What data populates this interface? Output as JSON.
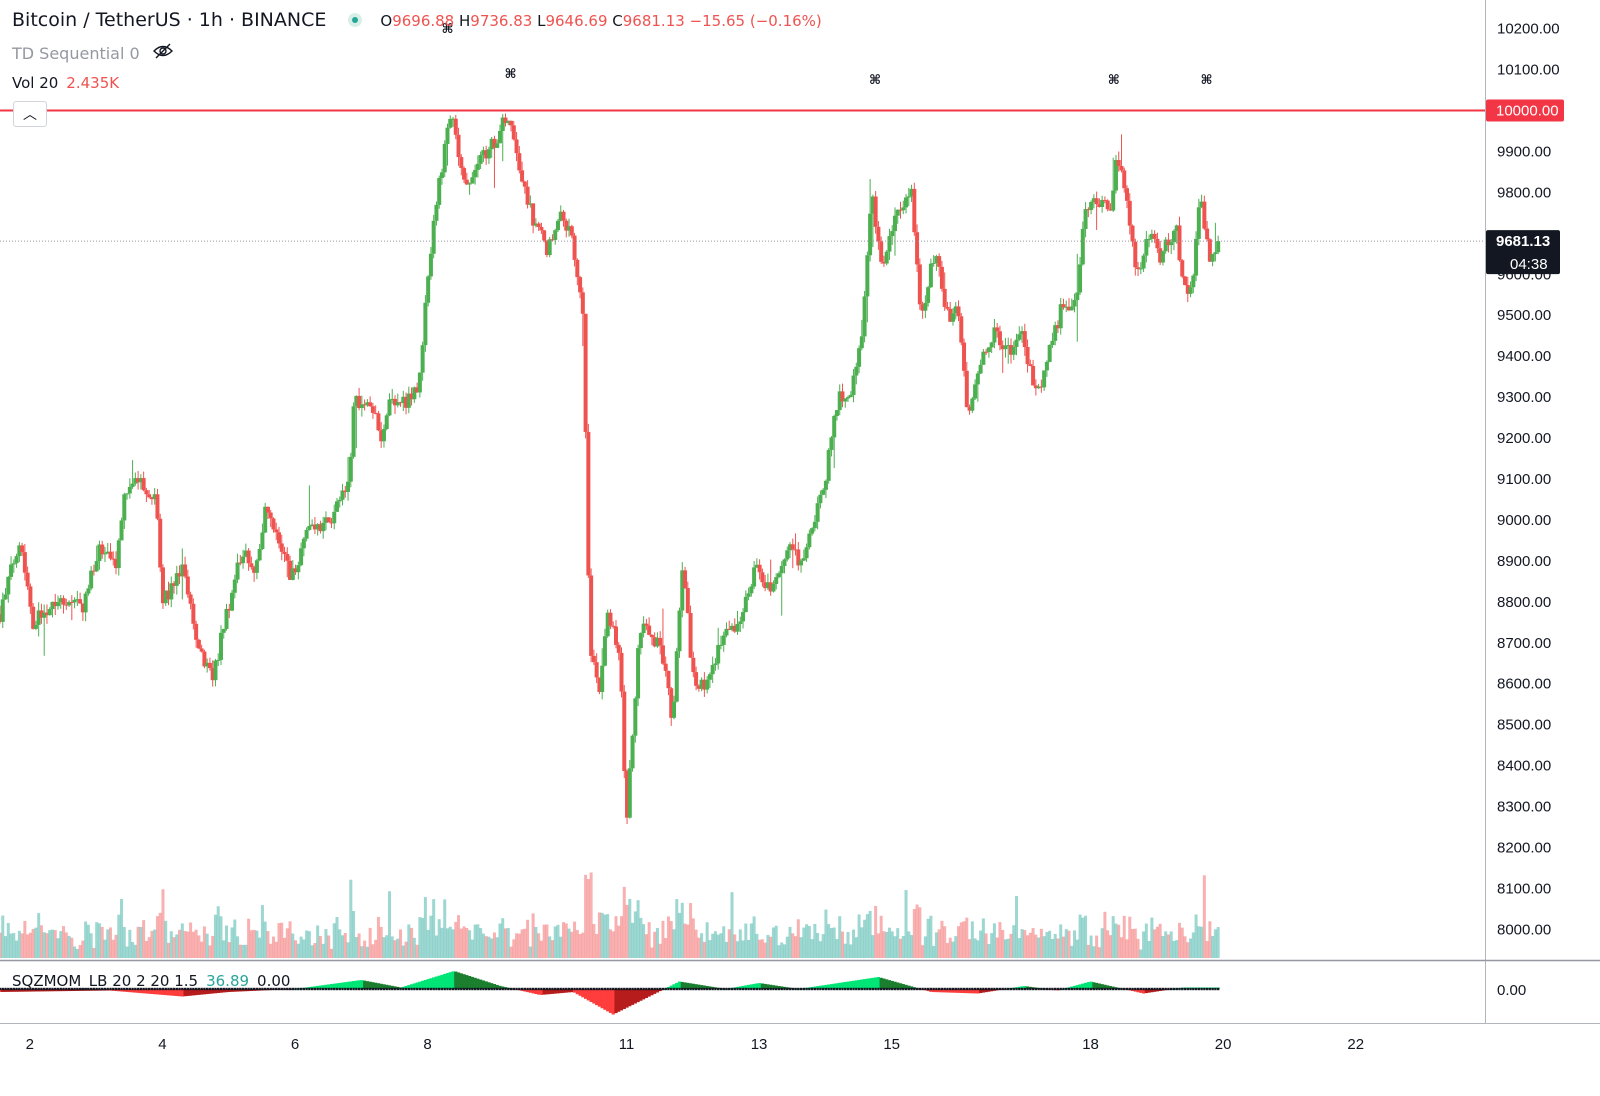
{
  "header": {
    "symbol": "Bitcoin / TetherUS · 1h · BINANCE",
    "open_label": "O",
    "open": "9696.88",
    "high_label": "H",
    "high": "9736.83",
    "low_label": "L",
    "low": "9646.69",
    "close_label": "C",
    "close": "9681.13",
    "change": "−15.65 (−0.16%)"
  },
  "indicators": {
    "td_label": "TD Sequential 0",
    "vol_label": "Vol 20",
    "vol_value": "2.435K",
    "mom_label": "SQZMOM_LB 20 2 20 1.5",
    "mom_value1": "36.89",
    "mom_value2": "0.00",
    "mom_axis_label": "0.00"
  },
  "icons": {
    "eye": "eye-crossed-icon",
    "collapse": "chevron-up-icon",
    "status_dot": "market-status-dot-icon"
  },
  "colors": {
    "up": "#26a69a",
    "up_candle": "#4caf50",
    "down": "#ef5350",
    "resistance": "#f23645",
    "price_tag": "#131722"
  },
  "chart_data": {
    "type": "candlestick",
    "timeframe": "1h",
    "y_axis_ticks": [
      "10200.00",
      "10100.00",
      "10000.00",
      "9900.00",
      "9800.00",
      "9600.00",
      "9500.00",
      "9400.00",
      "9300.00",
      "9200.00",
      "9100.00",
      "9000.00",
      "8900.00",
      "8800.00",
      "8700.00",
      "8600.00",
      "8500.00",
      "8400.00",
      "8300.00",
      "8200.00",
      "8100.00",
      "8000.00"
    ],
    "ylim": [
      7930,
      10270
    ],
    "x_axis_ticks": [
      "2",
      "4",
      "6",
      "8",
      "11",
      "13",
      "15",
      "18",
      "20",
      "22"
    ],
    "x_tick_day_positions": [
      2,
      4,
      6,
      8,
      11,
      13,
      15,
      18,
      20,
      22
    ],
    "xlim_days": [
      1.55,
      23.95
    ],
    "last_day": 19.95,
    "resistance_level": 10000,
    "resistance_label": "10000.00",
    "last_price": 9681.13,
    "last_price_label": "9681.13",
    "countdown": "04:38",
    "td_marker_glyph": "⌘",
    "td_markers": [
      {
        "day": 8.3,
        "price": 10190
      },
      {
        "day": 9.25,
        "price": 10080
      },
      {
        "day": 14.75,
        "price": 10065
      },
      {
        "day": 18.35,
        "price": 10065
      },
      {
        "day": 19.75,
        "price": 10065
      }
    ],
    "price_path": [
      {
        "day": 1.55,
        "close": 8770
      },
      {
        "day": 1.85,
        "close": 8960
      },
      {
        "day": 2.05,
        "close": 8750
      },
      {
        "day": 2.4,
        "close": 8810
      },
      {
        "day": 2.8,
        "close": 8790
      },
      {
        "day": 3.05,
        "close": 8930
      },
      {
        "day": 3.3,
        "close": 8880
      },
      {
        "day": 3.4,
        "close": 9040
      },
      {
        "day": 3.6,
        "close": 9100
      },
      {
        "day": 3.9,
        "close": 9060
      },
      {
        "day": 4.0,
        "close": 8800
      },
      {
        "day": 4.3,
        "close": 8880
      },
      {
        "day": 4.55,
        "close": 8690
      },
      {
        "day": 4.75,
        "close": 8610
      },
      {
        "day": 5.0,
        "close": 8790
      },
      {
        "day": 5.2,
        "close": 8930
      },
      {
        "day": 5.4,
        "close": 8860
      },
      {
        "day": 5.55,
        "close": 9020
      },
      {
        "day": 5.75,
        "close": 8950
      },
      {
        "day": 5.95,
        "close": 8860
      },
      {
        "day": 6.2,
        "close": 8980
      },
      {
        "day": 6.5,
        "close": 8990
      },
      {
        "day": 6.8,
        "close": 9080
      },
      {
        "day": 6.9,
        "close": 9300
      },
      {
        "day": 7.2,
        "close": 9260
      },
      {
        "day": 7.3,
        "close": 9180
      },
      {
        "day": 7.45,
        "close": 9300
      },
      {
        "day": 7.7,
        "close": 9290
      },
      {
        "day": 7.85,
        "close": 9320
      },
      {
        "day": 8.05,
        "close": 9650
      },
      {
        "day": 8.15,
        "close": 9800
      },
      {
        "day": 8.35,
        "close": 9990
      },
      {
        "day": 8.55,
        "close": 9820
      },
      {
        "day": 8.8,
        "close": 9880
      },
      {
        "day": 9.0,
        "close": 9920
      },
      {
        "day": 9.2,
        "close": 9990
      },
      {
        "day": 9.4,
        "close": 9850
      },
      {
        "day": 9.6,
        "close": 9730
      },
      {
        "day": 9.8,
        "close": 9660
      },
      {
        "day": 10.0,
        "close": 9760
      },
      {
        "day": 10.2,
        "close": 9670
      },
      {
        "day": 10.35,
        "close": 9500
      },
      {
        "day": 10.45,
        "close": 8670
      },
      {
        "day": 10.6,
        "close": 8580
      },
      {
        "day": 10.7,
        "close": 8770
      },
      {
        "day": 10.9,
        "close": 8680
      },
      {
        "day": 11.0,
        "close": 8260
      },
      {
        "day": 11.2,
        "close": 8740
      },
      {
        "day": 11.5,
        "close": 8700
      },
      {
        "day": 11.7,
        "close": 8510
      },
      {
        "day": 11.85,
        "close": 8900
      },
      {
        "day": 12.0,
        "close": 8620
      },
      {
        "day": 12.2,
        "close": 8590
      },
      {
        "day": 12.4,
        "close": 8700
      },
      {
        "day": 12.7,
        "close": 8750
      },
      {
        "day": 12.95,
        "close": 8880
      },
      {
        "day": 13.2,
        "close": 8820
      },
      {
        "day": 13.45,
        "close": 8930
      },
      {
        "day": 13.65,
        "close": 8890
      },
      {
        "day": 13.85,
        "close": 9000
      },
      {
        "day": 14.0,
        "close": 9100
      },
      {
        "day": 14.2,
        "close": 9310
      },
      {
        "day": 14.35,
        "close": 9290
      },
      {
        "day": 14.55,
        "close": 9450
      },
      {
        "day": 14.7,
        "close": 9790
      },
      {
        "day": 14.85,
        "close": 9620
      },
      {
        "day": 15.05,
        "close": 9730
      },
      {
        "day": 15.3,
        "close": 9790
      },
      {
        "day": 15.45,
        "close": 9490
      },
      {
        "day": 15.65,
        "close": 9660
      },
      {
        "day": 15.85,
        "close": 9490
      },
      {
        "day": 16.0,
        "close": 9510
      },
      {
        "day": 16.15,
        "close": 9250
      },
      {
        "day": 16.35,
        "close": 9400
      },
      {
        "day": 16.55,
        "close": 9460
      },
      {
        "day": 16.75,
        "close": 9410
      },
      {
        "day": 16.95,
        "close": 9460
      },
      {
        "day": 17.2,
        "close": 9300
      },
      {
        "day": 17.35,
        "close": 9400
      },
      {
        "day": 17.55,
        "close": 9510
      },
      {
        "day": 17.8,
        "close": 9540
      },
      {
        "day": 17.9,
        "close": 9760
      },
      {
        "day": 18.1,
        "close": 9780
      },
      {
        "day": 18.3,
        "close": 9750
      },
      {
        "day": 18.4,
        "close": 9890
      },
      {
        "day": 18.55,
        "close": 9790
      },
      {
        "day": 18.7,
        "close": 9600
      },
      {
        "day": 18.9,
        "close": 9700
      },
      {
        "day": 19.05,
        "close": 9640
      },
      {
        "day": 19.3,
        "close": 9720
      },
      {
        "day": 19.4,
        "close": 9560
      },
      {
        "day": 19.55,
        "close": 9580
      },
      {
        "day": 19.65,
        "close": 9800
      },
      {
        "day": 19.8,
        "close": 9640
      },
      {
        "day": 19.95,
        "close": 9681
      }
    ],
    "momentum_path": [
      {
        "day": 1.55,
        "value": -0.1
      },
      {
        "day": 3.2,
        "value": -0.05
      },
      {
        "day": 4.3,
        "value": -0.25
      },
      {
        "day": 5.0,
        "value": -0.1
      },
      {
        "day": 6.0,
        "value": 0.0
      },
      {
        "day": 7.0,
        "value": 0.3
      },
      {
        "day": 7.6,
        "value": 0.05
      },
      {
        "day": 8.4,
        "value": 0.6
      },
      {
        "day": 9.1,
        "value": 0.1
      },
      {
        "day": 9.7,
        "value": -0.2
      },
      {
        "day": 10.2,
        "value": -0.1
      },
      {
        "day": 10.8,
        "value": -0.85
      },
      {
        "day": 11.3,
        "value": -0.3
      },
      {
        "day": 11.8,
        "value": 0.25
      },
      {
        "day": 12.5,
        "value": 0.0
      },
      {
        "day": 13.0,
        "value": 0.2
      },
      {
        "day": 13.6,
        "value": 0.0
      },
      {
        "day": 14.8,
        "value": 0.4
      },
      {
        "day": 15.6,
        "value": -0.1
      },
      {
        "day": 16.3,
        "value": -0.15
      },
      {
        "day": 17.0,
        "value": 0.1
      },
      {
        "day": 17.5,
        "value": -0.05
      },
      {
        "day": 18.0,
        "value": 0.25
      },
      {
        "day": 18.8,
        "value": -0.15
      },
      {
        "day": 19.4,
        "value": 0.05
      },
      {
        "day": 19.95,
        "value": 0.05
      }
    ]
  }
}
